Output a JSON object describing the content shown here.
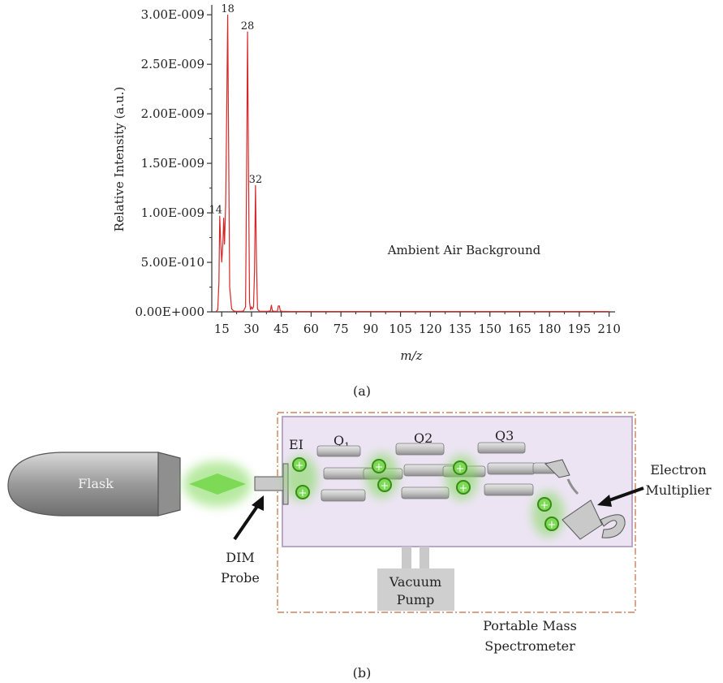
{
  "chart_data": {
    "type": "line",
    "title": "",
    "annotation": "Ambient Air Background",
    "xlabel": "m/z",
    "ylabel": "Relative Intensity (a.u.)",
    "xlim": [
      10,
      213
    ],
    "ylim": [
      0,
      3.1e-09
    ],
    "x_ticks": [
      15,
      30,
      45,
      60,
      75,
      90,
      105,
      120,
      135,
      150,
      165,
      180,
      195,
      210
    ],
    "x_tick_labels": [
      "15",
      "30",
      "45",
      "60",
      "75",
      "90",
      "105",
      "120",
      "135",
      "150",
      "165",
      "180",
      "195",
      "210"
    ],
    "y_ticks": [
      0,
      5e-10,
      1e-09,
      1.5e-09,
      2e-09,
      2.5e-09,
      3e-09
    ],
    "y_tick_labels": [
      "0.00E+000",
      "5.00E-010",
      "1.00E-009",
      "1.50E-009",
      "2.00E-009",
      "2.50E-009",
      "3.00E-009"
    ],
    "grid": false,
    "line_color": "#d62728",
    "series": [
      {
        "name": "",
        "x": [
          12,
          13,
          13.6,
          14,
          14.4,
          15,
          15.6,
          16,
          16.4,
          17,
          17.5,
          18,
          18.5,
          19,
          20,
          21,
          22,
          23,
          24,
          25,
          26,
          27,
          27.5,
          28,
          28.5,
          29,
          29.5,
          30,
          30.5,
          31,
          31.5,
          32,
          32.5,
          33,
          34,
          36,
          38,
          39.5,
          40,
          40.5,
          41.5,
          43,
          43.5,
          44,
          44.5,
          45.5,
          50,
          60,
          75,
          90,
          105,
          120,
          135,
          150,
          165,
          180,
          195,
          210
        ],
        "y": [
          0,
          2e-11,
          3e-10,
          9.7e-10,
          7.5e-10,
          5e-10,
          7e-10,
          9.5e-10,
          6.8e-10,
          1.1e-09,
          2e-09,
          3e-09,
          1.6e-09,
          2.5e-10,
          3e-11,
          1e-11,
          5e-12,
          5e-12,
          5e-12,
          5e-12,
          1e-11,
          5e-11,
          1.3e-09,
          2.83e-09,
          1.4e-09,
          1e-10,
          2e-11,
          5e-11,
          3e-11,
          5e-11,
          4e-10,
          1.28e-09,
          5e-10,
          3e-11,
          5e-12,
          5e-12,
          5e-12,
          1e-11,
          7e-11,
          1e-11,
          5e-12,
          5e-12,
          6e-11,
          6e-11,
          1e-11,
          5e-12,
          3e-12,
          3e-12,
          3e-12,
          3e-12,
          3e-12,
          3e-12,
          3e-12,
          3e-12,
          3e-12,
          3e-12,
          3e-12,
          3e-12
        ]
      }
    ],
    "peak_labels": [
      {
        "x": 14,
        "y": 9.7e-10,
        "text": "14"
      },
      {
        "x": 18,
        "y": 3e-09,
        "text": "18"
      },
      {
        "x": 28,
        "y": 2.83e-09,
        "text": "28"
      },
      {
        "x": 32,
        "y": 1.28e-09,
        "text": "32"
      }
    ]
  },
  "captions": {
    "a": "(a)",
    "b": "(b)"
  },
  "diagram": {
    "flask_label": "Flask",
    "probe_label_line1": "DIM",
    "probe_label_line2": "Probe",
    "ei_label": "EI",
    "q1_label": "Q",
    "q1_sub": "1",
    "q2_label": "Q2",
    "q3_label": "Q3",
    "detector_label_line1": "Electron",
    "detector_label_line2": "Multiplier",
    "pump_label_line1": "Vacuum",
    "pump_label_line2": "Pump",
    "instrument_label_line1": "Portable Mass",
    "instrument_label_line2": "Spectrometer",
    "ion_symbol": "+",
    "colors": {
      "glow": "#7ed957",
      "ion": "#3a8a1a",
      "chamber": "#ece4f3",
      "dashed": "#c86a3a",
      "rod": "#c9c9c9"
    }
  }
}
